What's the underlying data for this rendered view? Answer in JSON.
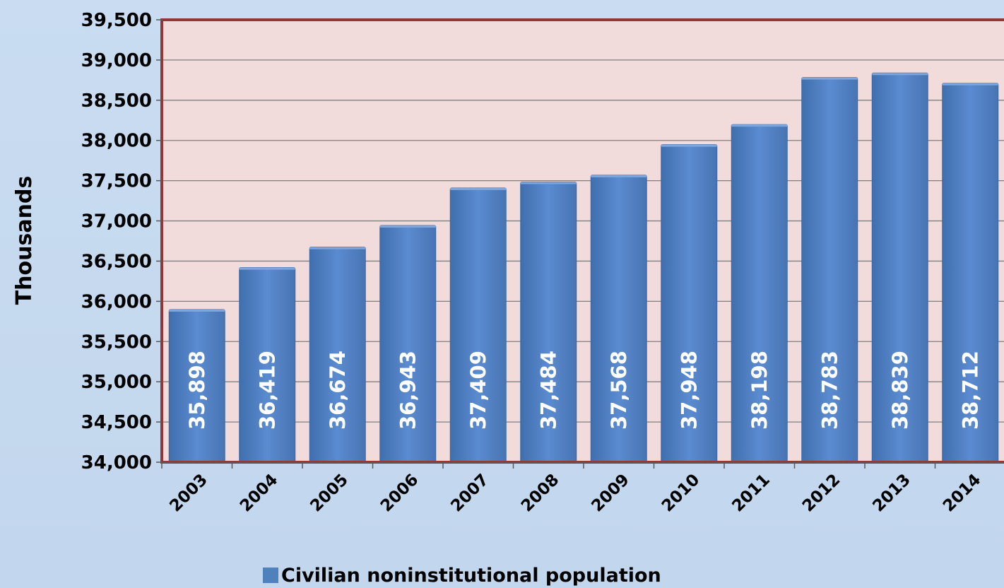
{
  "chart_data": {
    "type": "bar",
    "title": "",
    "xlabel": "",
    "ylabel": "Thousands",
    "ylim": [
      34000,
      39500
    ],
    "y_ticks": [
      34000,
      34500,
      35000,
      35500,
      36000,
      36500,
      37000,
      37500,
      38000,
      38500,
      39000,
      39500
    ],
    "y_tick_labels": [
      "34,000",
      "34,500",
      "35,000",
      "35,500",
      "36,000",
      "36,500",
      "37,000",
      "37,500",
      "38,000",
      "38,500",
      "39,000",
      "39,500"
    ],
    "categories": [
      "2003",
      "2004",
      "2005",
      "2006",
      "2007",
      "2008",
      "2009",
      "2010",
      "2011",
      "2012",
      "2013",
      "2014"
    ],
    "series": [
      {
        "name": "Civilian noninstitutional population",
        "values": [
          35898,
          36419,
          36674,
          36943,
          37409,
          37484,
          37568,
          37948,
          38198,
          38783,
          38839,
          38712
        ],
        "labels": [
          "35,898",
          "36,419",
          "36,674",
          "36,943",
          "37,409",
          "37,484",
          "37,568",
          "37,948",
          "38,198",
          "38,783",
          "38,839",
          "38,712"
        ],
        "color": "#4f81bd"
      }
    ],
    "grid": true,
    "legend": "bottom",
    "colors": {
      "plot_background": "#f2dcdb",
      "plot_border": "#963634",
      "page_background": "#c6d9ef",
      "gridline": "#7f7f7f"
    }
  }
}
